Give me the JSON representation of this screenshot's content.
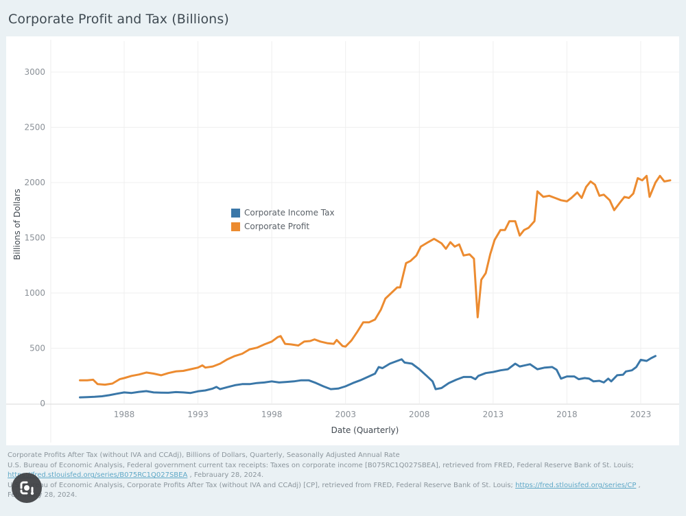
{
  "page": {
    "title": "Corporate Profit and Tax (Billions)"
  },
  "legend": {
    "items": [
      {
        "label": "Corporate Income Tax",
        "color": "#3a77a8"
      },
      {
        "label": "Corporate Profit",
        "color": "#ec8b30"
      }
    ]
  },
  "footer": {
    "line1": "Corporate Profits After Tax (without IVA and CCAdj), Billions of Dollars, Quarterly, Seasonally Adjusted Annual Rate",
    "line2": "U.S. Bureau of Economic Analysis, Federal government current tax receipts: Taxes on corporate income [B075RC1Q027SBEA], retrieved from FRED, Federal Reserve Bank of St. Louis;",
    "link1": "https://fred.stlouisfed.org/series/B075RC1Q027SBEA",
    "line3_suffix": " , Febrauary 28, 2024.",
    "line4": "U.S. Bureau of Economic Analysis, Corporate Profits After Tax (without IVA and CCAdj) [CP], retrieved from FRED, Federal Reserve Bank of St. Louis; ",
    "link2": "https://fred.stlouisfed.org/series/CP",
    "line4_suffix": " ,",
    "line5": "Febrauary 28, 2024."
  },
  "overlay": {
    "lens_icon": "google-lens-icon"
  },
  "chart_data": {
    "type": "line",
    "title": "Corporate Profit and Tax (Billions)",
    "xlabel": "Date (Quarterly)",
    "ylabel": "Billions of Dollars",
    "xlim": [
      1982.7,
      2025.3
    ],
    "ylim": [
      0,
      3300
    ],
    "x_ticks": [
      1988,
      1993,
      1998,
      2003,
      2008,
      2013,
      2018,
      2023
    ],
    "y_ticks": [
      0,
      500,
      1000,
      1500,
      2000,
      2500,
      3000
    ],
    "grid": true,
    "legend_position": "center-left",
    "series": [
      {
        "name": "Corporate Income Tax",
        "color": "#3a77a8",
        "points": [
          [
            1985.0,
            55
          ],
          [
            1985.5,
            57
          ],
          [
            1986.0,
            60
          ],
          [
            1986.5,
            65
          ],
          [
            1987.0,
            75
          ],
          [
            1987.5,
            88
          ],
          [
            1988.0,
            100
          ],
          [
            1988.5,
            95
          ],
          [
            1989.0,
            105
          ],
          [
            1989.5,
            112
          ],
          [
            1990.0,
            100
          ],
          [
            1990.5,
            98
          ],
          [
            1991.0,
            97
          ],
          [
            1991.5,
            103
          ],
          [
            1992.0,
            100
          ],
          [
            1992.5,
            95
          ],
          [
            1993.0,
            110
          ],
          [
            1993.5,
            118
          ],
          [
            1994.0,
            135
          ],
          [
            1994.25,
            150
          ],
          [
            1994.5,
            130
          ],
          [
            1995.0,
            148
          ],
          [
            1995.5,
            165
          ],
          [
            1996.0,
            175
          ],
          [
            1996.5,
            175
          ],
          [
            1997.0,
            185
          ],
          [
            1997.5,
            190
          ],
          [
            1998.0,
            200
          ],
          [
            1998.5,
            190
          ],
          [
            1999.0,
            195
          ],
          [
            1999.5,
            200
          ],
          [
            2000.0,
            210
          ],
          [
            2000.5,
            210
          ],
          [
            2001.0,
            185
          ],
          [
            2001.5,
            155
          ],
          [
            2002.0,
            130
          ],
          [
            2002.5,
            135
          ],
          [
            2003.0,
            155
          ],
          [
            2003.5,
            185
          ],
          [
            2004.0,
            210
          ],
          [
            2004.5,
            240
          ],
          [
            2005.0,
            270
          ],
          [
            2005.25,
            330
          ],
          [
            2005.5,
            320
          ],
          [
            2006.0,
            360
          ],
          [
            2006.5,
            385
          ],
          [
            2006.8,
            400
          ],
          [
            2007.0,
            370
          ],
          [
            2007.5,
            360
          ],
          [
            2008.0,
            310
          ],
          [
            2008.5,
            250
          ],
          [
            2008.9,
            200
          ],
          [
            2009.1,
            130
          ],
          [
            2009.5,
            140
          ],
          [
            2010.0,
            185
          ],
          [
            2010.5,
            215
          ],
          [
            2011.0,
            240
          ],
          [
            2011.5,
            240
          ],
          [
            2011.8,
            220
          ],
          [
            2012.0,
            250
          ],
          [
            2012.5,
            275
          ],
          [
            2013.0,
            285
          ],
          [
            2013.5,
            300
          ],
          [
            2014.0,
            310
          ],
          [
            2014.5,
            360
          ],
          [
            2014.8,
            335
          ],
          [
            2015.5,
            355
          ],
          [
            2016.0,
            310
          ],
          [
            2016.5,
            325
          ],
          [
            2017.0,
            330
          ],
          [
            2017.3,
            305
          ],
          [
            2017.6,
            225
          ],
          [
            2018.0,
            245
          ],
          [
            2018.5,
            245
          ],
          [
            2018.8,
            220
          ],
          [
            2019.2,
            230
          ],
          [
            2019.5,
            225
          ],
          [
            2019.8,
            200
          ],
          [
            2020.2,
            205
          ],
          [
            2020.5,
            190
          ],
          [
            2020.8,
            225
          ],
          [
            2021.0,
            200
          ],
          [
            2021.4,
            255
          ],
          [
            2021.8,
            260
          ],
          [
            2022.0,
            290
          ],
          [
            2022.4,
            300
          ],
          [
            2022.7,
            330
          ],
          [
            2023.0,
            395
          ],
          [
            2023.4,
            385
          ],
          [
            2023.7,
            410
          ],
          [
            2024.0,
            430
          ]
        ]
      },
      {
        "name": "Corporate Profit",
        "color": "#ec8b30",
        "points": [
          [
            1985.0,
            210
          ],
          [
            1985.5,
            210
          ],
          [
            1985.9,
            215
          ],
          [
            1986.2,
            175
          ],
          [
            1986.7,
            170
          ],
          [
            1987.2,
            180
          ],
          [
            1987.7,
            220
          ],
          [
            1988.0,
            230
          ],
          [
            1988.5,
            250
          ],
          [
            1989.0,
            262
          ],
          [
            1989.5,
            280
          ],
          [
            1990.0,
            270
          ],
          [
            1990.5,
            255
          ],
          [
            1991.0,
            275
          ],
          [
            1991.5,
            290
          ],
          [
            1992.0,
            295
          ],
          [
            1992.5,
            310
          ],
          [
            1993.0,
            325
          ],
          [
            1993.3,
            345
          ],
          [
            1993.5,
            325
          ],
          [
            1994.0,
            335
          ],
          [
            1994.5,
            360
          ],
          [
            1995.0,
            400
          ],
          [
            1995.5,
            430
          ],
          [
            1996.0,
            450
          ],
          [
            1996.5,
            490
          ],
          [
            1997.0,
            505
          ],
          [
            1997.5,
            535
          ],
          [
            1998.0,
            560
          ],
          [
            1998.4,
            600
          ],
          [
            1998.6,
            610
          ],
          [
            1998.9,
            540
          ],
          [
            1999.3,
            535
          ],
          [
            1999.8,
            525
          ],
          [
            2000.2,
            560
          ],
          [
            2000.6,
            565
          ],
          [
            2000.9,
            580
          ],
          [
            2001.3,
            560
          ],
          [
            2001.8,
            545
          ],
          [
            2002.2,
            540
          ],
          [
            2002.4,
            575
          ],
          [
            2002.8,
            520
          ],
          [
            2003.0,
            515
          ],
          [
            2003.4,
            570
          ],
          [
            2003.8,
            650
          ],
          [
            2004.2,
            735
          ],
          [
            2004.6,
            735
          ],
          [
            2005.0,
            760
          ],
          [
            2005.4,
            850
          ],
          [
            2005.7,
            950
          ],
          [
            2006.1,
            1000
          ],
          [
            2006.5,
            1050
          ],
          [
            2006.7,
            1050
          ],
          [
            2007.1,
            1270
          ],
          [
            2007.4,
            1290
          ],
          [
            2007.8,
            1340
          ],
          [
            2008.1,
            1420
          ],
          [
            2008.6,
            1460
          ],
          [
            2009.0,
            1490
          ],
          [
            2009.5,
            1450
          ],
          [
            2009.8,
            1400
          ],
          [
            2010.1,
            1460
          ],
          [
            2010.4,
            1420
          ],
          [
            2010.7,
            1440
          ],
          [
            2011.0,
            1340
          ],
          [
            2011.4,
            1350
          ],
          [
            2011.7,
            1310
          ],
          [
            2011.95,
            780
          ],
          [
            2012.2,
            1120
          ],
          [
            2012.5,
            1180
          ],
          [
            2012.8,
            1350
          ],
          [
            2013.1,
            1480
          ],
          [
            2013.5,
            1570
          ],
          [
            2013.8,
            1570
          ],
          [
            2014.1,
            1650
          ],
          [
            2014.5,
            1650
          ],
          [
            2014.8,
            1520
          ],
          [
            2015.1,
            1570
          ],
          [
            2015.4,
            1590
          ],
          [
            2015.8,
            1650
          ],
          [
            2016.0,
            1920
          ],
          [
            2016.4,
            1870
          ],
          [
            2016.8,
            1880
          ],
          [
            2017.2,
            1860
          ],
          [
            2017.6,
            1840
          ],
          [
            2018.0,
            1830
          ],
          [
            2018.3,
            1860
          ],
          [
            2018.7,
            1910
          ],
          [
            2019.0,
            1860
          ],
          [
            2019.3,
            1960
          ],
          [
            2019.6,
            2010
          ],
          [
            2019.9,
            1980
          ],
          [
            2020.2,
            1880
          ],
          [
            2020.5,
            1890
          ],
          [
            2020.9,
            1840
          ],
          [
            2021.2,
            1750
          ],
          [
            2021.6,
            1820
          ],
          [
            2021.9,
            1870
          ],
          [
            2022.2,
            1860
          ],
          [
            2022.5,
            1900
          ],
          [
            2022.8,
            2040
          ],
          [
            2023.1,
            2020
          ],
          [
            2023.4,
            2060
          ],
          [
            2023.6,
            1870
          ],
          [
            2024.0,
            2000
          ],
          [
            2024.3,
            2060
          ],
          [
            2024.6,
            2010
          ],
          [
            2025.0,
            2020
          ]
        ]
      }
    ]
  }
}
